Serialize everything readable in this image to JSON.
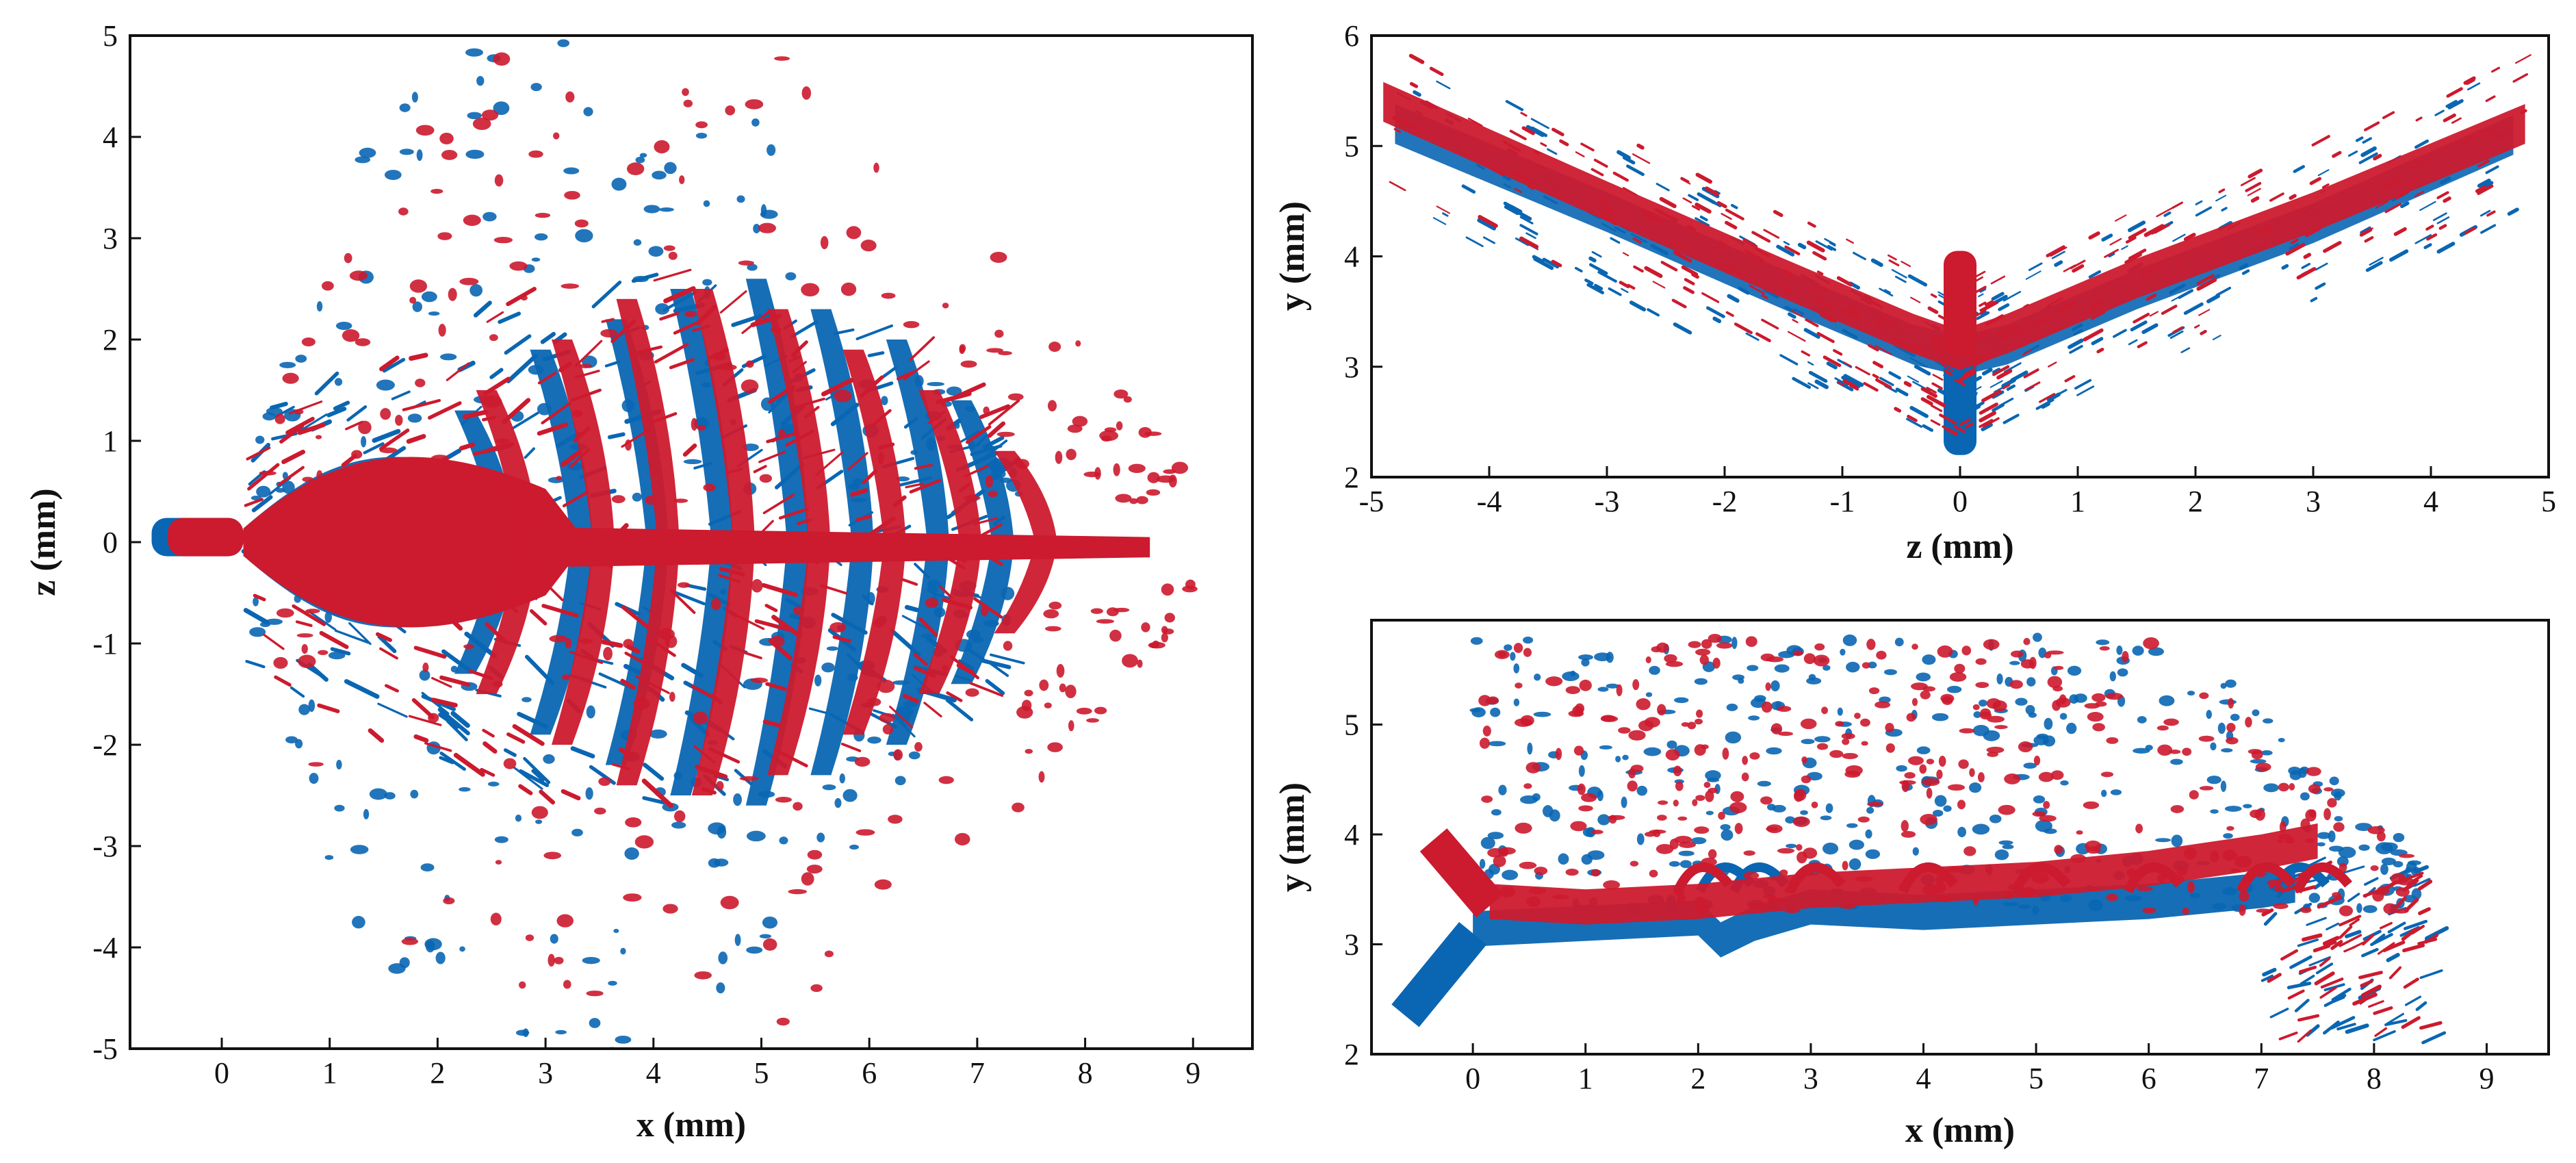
{
  "colors": {
    "series_a": "#0a66b2",
    "series_b": "#cc1a2e",
    "axis": "#111111"
  },
  "chart_data": [
    {
      "type": "scatter",
      "title": "",
      "xlabel": "x (mm)",
      "ylabel": "z (mm)",
      "xlim": [
        -0.85,
        9.55
      ],
      "ylim": [
        -5,
        5
      ],
      "xticks": [
        0,
        1,
        2,
        3,
        4,
        5,
        6,
        7,
        8,
        9
      ],
      "yticks": [
        -5,
        -4,
        -3,
        -2,
        -1,
        0,
        1,
        2,
        3,
        4,
        5
      ],
      "grid": false,
      "legend": "none",
      "series": [
        {
          "name": "blue",
          "color": "#0a66b2",
          "jet_x": [
            -0.65,
            0.2
          ],
          "jet_z": 0.05,
          "core_x": [
            0.2,
            2.8
          ],
          "core_halfwidth": 1.05,
          "rib_x": [
            2.6,
            3.3,
            4.0,
            4.6,
            5.3,
            5.9,
            6.6,
            7.2
          ],
          "rib_halfheight": [
            1.3,
            1.9,
            2.2,
            2.5,
            2.6,
            2.3,
            2.0,
            1.4
          ],
          "ring_x": [
            0.3,
            7.4
          ],
          "ring_z": [
            -4.7,
            4.7
          ]
        },
        {
          "name": "red",
          "color": "#cc1a2e",
          "jet_x": [
            -0.5,
            0.2
          ],
          "jet_z": 0.05,
          "core_x": [
            0.2,
            3.0
          ],
          "core_halfwidth": 1.05,
          "rib_x": [
            2.8,
            3.5,
            4.1,
            4.8,
            5.5,
            6.2,
            6.9,
            7.6
          ],
          "rib_halfheight": [
            1.5,
            2.0,
            2.4,
            2.5,
            2.3,
            1.9,
            1.5,
            0.9
          ],
          "ring_x": [
            0.4,
            9.0
          ],
          "ring_z": [
            -4.2,
            4.5
          ]
        }
      ]
    },
    {
      "type": "scatter",
      "title": "",
      "xlabel": "z (mm)",
      "ylabel": "y (mm)",
      "xlim": [
        -5,
        5
      ],
      "ylim": [
        2,
        6
      ],
      "xticks": [
        -5,
        -4,
        -3,
        -2,
        -1,
        0,
        1,
        2,
        3,
        4,
        5
      ],
      "yticks": [
        2,
        3,
        4,
        5,
        6
      ],
      "grid": false,
      "legend": "none",
      "series": [
        {
          "name": "blue",
          "color": "#0a66b2",
          "v_points_z": [
            -4.8,
            -3.0,
            -1.5,
            -0.4,
            0,
            0.4,
            1.5,
            3.0,
            4.7
          ],
          "v_points_y": [
            5.2,
            4.4,
            3.7,
            3.2,
            3.1,
            3.2,
            3.7,
            4.3,
            5.1
          ],
          "stem_z": 0,
          "stem_y": [
            2.2,
            3.3
          ]
        },
        {
          "name": "red",
          "color": "#cc1a2e",
          "v_points_z": [
            -4.9,
            -3.0,
            -1.5,
            -0.4,
            0,
            0.4,
            1.5,
            3.0,
            4.8
          ],
          "v_points_y": [
            5.4,
            4.5,
            3.8,
            3.3,
            3.15,
            3.3,
            3.8,
            4.4,
            5.2
          ],
          "stem_z": 0,
          "stem_y": [
            3.1,
            4.05
          ]
        }
      ]
    },
    {
      "type": "scatter",
      "title": "",
      "xlabel": "x (mm)",
      "ylabel": "y (mm)",
      "xlim": [
        -0.9,
        9.55
      ],
      "ylim": [
        2,
        5.95
      ],
      "xticks": [
        0,
        1,
        2,
        3,
        4,
        5,
        6,
        7,
        8,
        9
      ],
      "yticks": [
        2,
        3,
        4,
        5
      ],
      "grid": false,
      "legend": "none",
      "series": [
        {
          "name": "blue",
          "color": "#0a66b2",
          "inlet_x": [
            -0.6,
            0.0
          ],
          "inlet_y": [
            2.35,
            3.1
          ],
          "trace_x": [
            0.0,
            1.0,
            2.0,
            2.2,
            2.5,
            3.0,
            4.0,
            5.0,
            6.0,
            7.0,
            7.3
          ],
          "trace_y": [
            3.1,
            3.15,
            3.2,
            3.0,
            3.15,
            3.3,
            3.25,
            3.3,
            3.35,
            3.45,
            3.5
          ],
          "spray_x": [
            0.0,
            8.4
          ],
          "spray_y": [
            2.1,
            5.9
          ]
        },
        {
          "name": "red",
          "color": "#cc1a2e",
          "inlet_x": [
            -0.35,
            0.15
          ],
          "inlet_y": [
            3.95,
            3.35
          ],
          "trace_x": [
            0.15,
            1.0,
            2.0,
            3.0,
            4.0,
            5.0,
            6.0,
            7.0,
            7.5
          ],
          "trace_y": [
            3.35,
            3.3,
            3.35,
            3.45,
            3.5,
            3.55,
            3.65,
            3.8,
            3.9
          ],
          "spray_x": [
            0.1,
            8.3
          ],
          "spray_y": [
            2.1,
            5.9
          ]
        }
      ]
    }
  ]
}
